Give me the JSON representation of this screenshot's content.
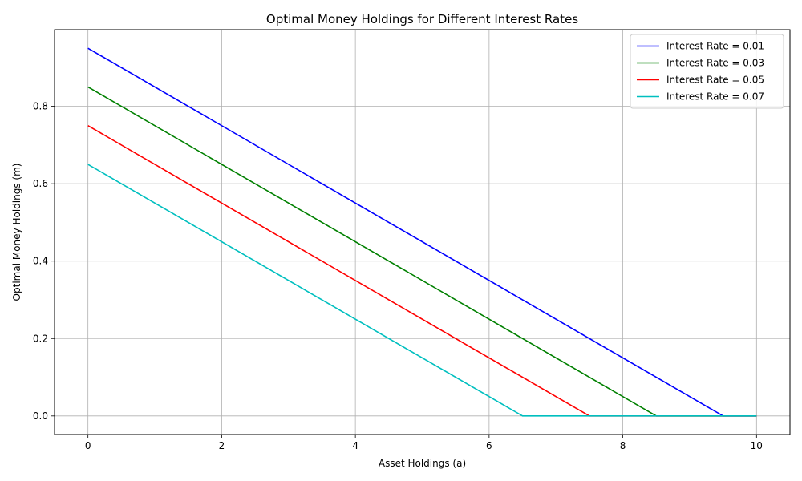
{
  "chart_data": {
    "type": "line",
    "title": "Optimal Money Holdings for Different Interest Rates",
    "xlabel": "Asset Holdings (a)",
    "ylabel": "Optimal Money Holdings (m)",
    "xlim": [
      -0.5,
      10.5
    ],
    "ylim": [
      -0.048,
      0.998
    ],
    "xticks": [
      0,
      2,
      4,
      6,
      8,
      10
    ],
    "xtick_labels": [
      "0",
      "2",
      "4",
      "6",
      "8",
      "10"
    ],
    "yticks": [
      0.0,
      0.2,
      0.4,
      0.6,
      0.8
    ],
    "ytick_labels": [
      "0.0",
      "0.2",
      "0.4",
      "0.6",
      "0.8"
    ],
    "grid": true,
    "legend_position": "top-right",
    "series": [
      {
        "name": "Interest Rate = 0.01",
        "color": "#0000ff",
        "x": [
          0,
          9.5,
          10
        ],
        "y": [
          0.95,
          0.0,
          0.0
        ]
      },
      {
        "name": "Interest Rate = 0.03",
        "color": "#008000",
        "x": [
          0,
          8.5,
          10
        ],
        "y": [
          0.85,
          0.0,
          0.0
        ]
      },
      {
        "name": "Interest Rate = 0.05",
        "color": "#ff0000",
        "x": [
          0,
          7.5,
          10
        ],
        "y": [
          0.75,
          0.0,
          0.0
        ]
      },
      {
        "name": "Interest Rate = 0.07",
        "color": "#00bfbf",
        "x": [
          0,
          6.5,
          10
        ],
        "y": [
          0.65,
          0.0,
          0.0
        ]
      }
    ]
  }
}
